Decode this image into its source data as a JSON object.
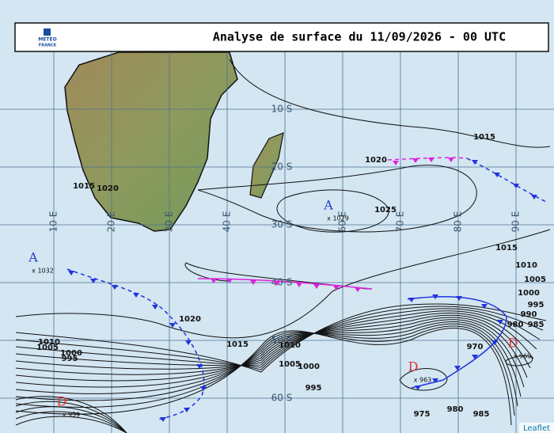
{
  "header": {
    "title": "Analyse de surface du 11/09/2026 - 00 UTC",
    "logo": [
      "METEO",
      "FRANCE"
    ]
  },
  "graticule": {
    "latitudes": [
      "10 S",
      "20 S",
      "30 S",
      "40 S",
      "50 S",
      "60 S"
    ],
    "longitudes": [
      "10 E",
      "20 E",
      "30 E",
      "40 E",
      "60 E",
      "70 E",
      "80 E",
      "90 E"
    ]
  },
  "isobar_labels": [
    1015,
    1020,
    1025,
    1015,
    1010,
    1005,
    1000,
    995,
    990,
    985,
    980,
    970,
    1020,
    1015,
    1010,
    1005,
    1000,
    995,
    975,
    980,
    985,
    1010,
    1005,
    1000,
    995,
    1020,
    1015
  ],
  "centers": [
    {
      "symbol": "A",
      "label": "x 1032"
    },
    {
      "symbol": "A",
      "label": "x 1029"
    },
    {
      "symbol": "D",
      "label": "x 963"
    },
    {
      "symbol": "D",
      "label": "x 969"
    },
    {
      "symbol": "D",
      "label": "x 959"
    }
  ],
  "attribution": "Leaflet"
}
